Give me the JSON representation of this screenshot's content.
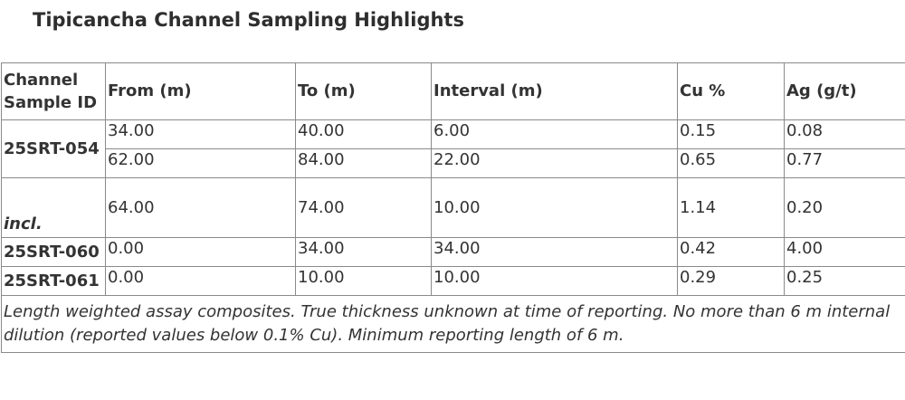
{
  "title": "Tipicancha Channel Sampling Highlights",
  "table": {
    "headers": [
      "Channel Sample ID",
      "From (m)",
      "To (m)",
      "Interval (m)",
      "Cu %",
      "Ag (g/t)"
    ],
    "rows": [
      {
        "id": "25SRT-054",
        "from": "34.00",
        "to": "40.00",
        "interval": "6.00",
        "cu": "0.15",
        "ag": "0.08"
      },
      {
        "id": "",
        "from": "62.00",
        "to": "84.00",
        "interval": "22.00",
        "cu": "0.65",
        "ag": "0.77"
      },
      {
        "id": "incl.",
        "from": "64.00",
        "to": "74.00",
        "interval": "10.00",
        "cu": "1.14",
        "ag": "0.20"
      },
      {
        "id": "25SRT-060",
        "from": "0.00",
        "to": "34.00",
        "interval": "34.00",
        "cu": "0.42",
        "ag": "4.00"
      },
      {
        "id": "25SRT-061",
        "from": "0.00",
        "to": "10.00",
        "interval": "10.00",
        "cu": "0.29",
        "ag": "0.25"
      }
    ],
    "footnote": "Length weighted assay composites. True thickness unknown at time of reporting. No more than 6 m internal dilution (reported values below 0.1% Cu). Minimum reporting length of 6 m."
  }
}
